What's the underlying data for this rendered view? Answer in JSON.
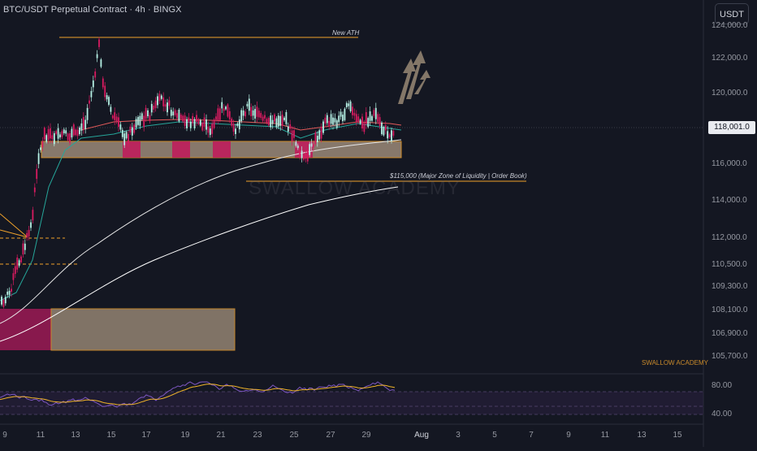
{
  "header": {
    "title": "BTC/USDT Perpetual Contract · 4h · BINGX",
    "currency_button": "USDT"
  },
  "price_axis": {
    "labels": [
      "124,000.0",
      "122,000.0",
      "120,000.0",
      "118,000.0",
      "116,000.0",
      "114,000.0",
      "112,000.0",
      "110,500.0",
      "109,300.0",
      "108,100.0",
      "106,900.0",
      "105,700.0"
    ],
    "current_price": "118,001.0"
  },
  "rsi_axis": {
    "labels": [
      "80.00",
      "40.00"
    ]
  },
  "time_axis": {
    "labels": [
      "9",
      "11",
      "13",
      "15",
      "17",
      "19",
      "21",
      "23",
      "25",
      "27",
      "29",
      "Aug",
      "3",
      "5",
      "7",
      "9",
      "11",
      "13",
      "15"
    ]
  },
  "annotations": {
    "ath": "New ATH",
    "liquidity": "$115,000 (Major Zone of Liquidity | Order Book)",
    "watermark": "SWALLOW ACADEMY",
    "small_watermark": "SWALLOW ACADEMY"
  },
  "colors": {
    "background": "#141722",
    "up_candle": "#b6f1e5",
    "down_candle": "#d81b60",
    "zone_fill": "#9c8a78",
    "zone_border": "#f0a22b",
    "ma_white": "#ffffff",
    "ma_green": "#26a69a",
    "ma_red": "#e35a5a",
    "rsi_line": "#7e57c2",
    "rsi_signal": "#f0b429",
    "arrow": "#a18f7a"
  }
}
